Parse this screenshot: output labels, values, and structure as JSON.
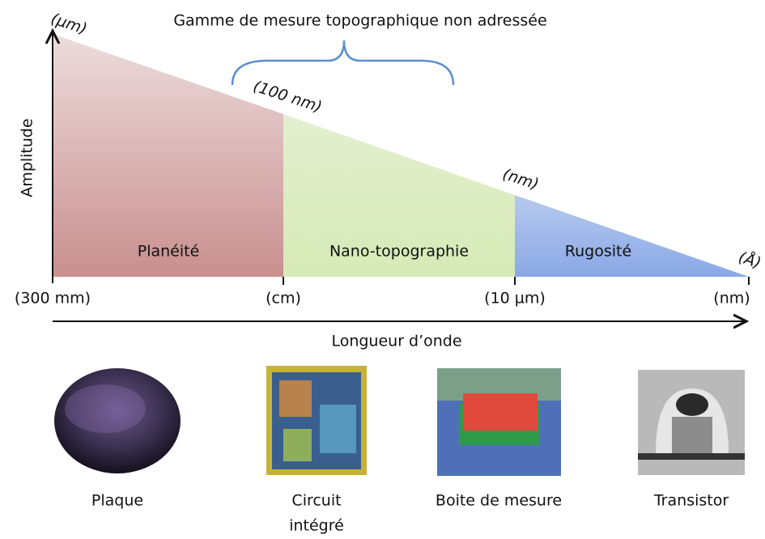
{
  "title": "Gamme de mesure topographique non adressée",
  "y_axis_label": "Amplitude",
  "x_axis_label": "Longueur d’onde",
  "amplitude_labels": [
    "(µm)",
    "(100 nm)",
    "(nm)",
    "(Å)"
  ],
  "wavelength_labels": [
    "(300 mm)",
    "(cm)",
    "(10 µm)",
    "(nm)"
  ],
  "regions": [
    "Planéité",
    "Nano-topographie",
    "Rugosité"
  ],
  "images": [
    {
      "label": "Plaque"
    },
    {
      "label": [
        "Circuit",
        "intégré"
      ]
    },
    {
      "label": "Boite de mesure"
    },
    {
      "label": "Transistor"
    }
  ]
}
